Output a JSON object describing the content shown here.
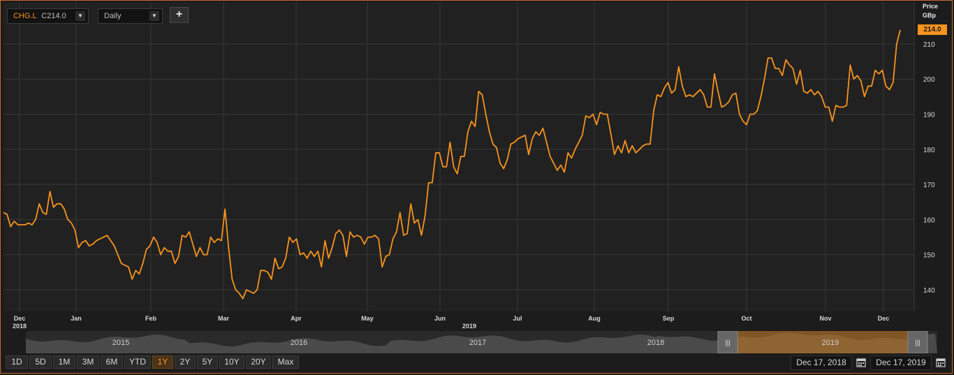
{
  "symbol": {
    "ticker": "CHG.L",
    "close_label": "C",
    "close_value": "214.0"
  },
  "interval": {
    "value": "Daily"
  },
  "add_label": "+",
  "axis": {
    "title_line1": "Price",
    "title_line2": "GBp",
    "last_price_tag": "214.0"
  },
  "chart_data": {
    "type": "line",
    "series": [
      {
        "values": [
          162,
          161.5,
          158,
          159.5,
          158.5,
          158.5,
          158.5,
          159,
          158.5,
          160,
          164.5,
          162,
          161.5,
          168,
          163.5,
          164.5,
          164.5,
          163,
          160,
          159,
          157,
          152,
          153.5,
          154,
          152.5,
          153,
          154,
          154.5,
          155,
          155.5,
          154,
          152.5,
          150,
          147.5,
          147,
          146.5,
          143,
          145.5,
          144.5,
          147.5,
          151.5,
          152.5,
          155,
          153.5,
          150,
          152,
          151,
          151,
          147.5,
          149.5,
          155.5,
          155,
          156.5,
          153,
          149.5,
          152,
          150,
          150,
          155,
          153.5,
          154.5,
          154,
          163,
          152,
          143,
          140,
          139,
          137.5,
          140,
          139.5,
          139,
          140,
          145.5,
          145.5,
          145,
          143,
          149,
          146,
          146.5,
          149,
          155,
          153.5,
          154.5,
          150,
          150.5,
          149,
          151,
          149.5,
          151,
          146.5,
          154,
          149,
          152,
          156,
          157,
          155.5,
          149.5,
          156.5,
          155,
          155.5,
          155,
          153,
          155,
          155,
          155.5,
          154.5,
          146.5,
          149.5,
          150,
          154.5,
          156.5,
          162,
          155.5,
          156,
          164.5,
          159,
          160,
          155.5,
          161,
          170.5,
          170.5,
          179,
          179,
          175,
          175,
          182,
          175,
          173,
          178,
          178,
          185,
          188,
          186.5,
          196.5,
          195.5,
          190,
          185,
          181.5,
          180.5,
          176,
          174.5,
          177,
          181.5,
          182,
          183,
          183.5,
          184,
          178.5,
          183,
          185,
          184,
          186,
          182,
          178,
          176,
          174,
          175.5,
          173.5,
          179,
          177.5,
          180,
          182,
          184,
          189.5,
          189,
          190,
          187,
          190.5,
          190,
          190,
          184.5,
          178.5,
          181,
          179,
          182.5,
          179,
          181,
          179,
          180,
          181,
          181.5,
          181.5,
          191,
          195.5,
          195,
          197.5,
          199,
          196,
          197,
          203.5,
          198,
          195,
          195.5,
          195,
          196,
          197,
          195.5,
          192,
          192,
          201.5,
          196.5,
          192,
          192.5,
          193.5,
          195.5,
          196,
          190,
          188,
          187,
          190,
          190,
          191,
          195,
          200,
          206,
          206,
          203,
          203,
          201,
          205.5,
          204,
          203,
          198.5,
          202.5,
          196.5,
          196,
          197,
          195.5,
          196.5,
          195,
          192,
          192,
          188,
          192.5,
          192,
          192,
          192.5,
          204,
          200,
          201,
          199.5,
          195,
          198,
          198,
          202.5,
          201.5,
          202.5,
          198,
          197,
          199,
          210,
          214
        ]
      }
    ],
    "x_tick_labels": [
      "Dec",
      "Jan",
      "Feb",
      "Mar",
      "Apr",
      "May",
      "Jun",
      "Jul",
      "Aug",
      "Sep",
      "Oct",
      "Nov",
      "Dec"
    ],
    "x_year_labels": [
      "2018",
      "2019"
    ],
    "y_ticks": [
      140,
      150,
      160,
      170,
      180,
      190,
      200,
      210
    ],
    "ylim": [
      133,
      221
    ],
    "x_start": "Dec 2018",
    "x_end": "Dec 2019",
    "line_color": "#f7931e",
    "grid": true
  },
  "navigator": {
    "years": [
      "2015",
      "2016",
      "2017",
      "2018",
      "2019"
    ],
    "selected_year": "2019"
  },
  "range_buttons": [
    {
      "label": "1D",
      "active": false
    },
    {
      "label": "5D",
      "active": false
    },
    {
      "label": "1M",
      "active": false
    },
    {
      "label": "3M",
      "active": false
    },
    {
      "label": "6M",
      "active": false
    },
    {
      "label": "YTD",
      "active": false
    },
    {
      "label": "1Y",
      "active": true
    },
    {
      "label": "2Y",
      "active": false
    },
    {
      "label": "5Y",
      "active": false
    },
    {
      "label": "10Y",
      "active": false
    },
    {
      "label": "20Y",
      "active": false
    },
    {
      "label": "Max",
      "active": false
    }
  ],
  "date_range": {
    "start": "Dec 17, 2018",
    "end": "Dec 17, 2019"
  },
  "icons": {
    "dropdown": "chevron-down-icon",
    "calendar": "calendar-icon",
    "add": "plus-icon"
  },
  "colors": {
    "accent": "#f7931e",
    "background": "#1c1c1c",
    "plot_background": "#212121",
    "grid": "#383838",
    "frame": "#c8692b"
  }
}
